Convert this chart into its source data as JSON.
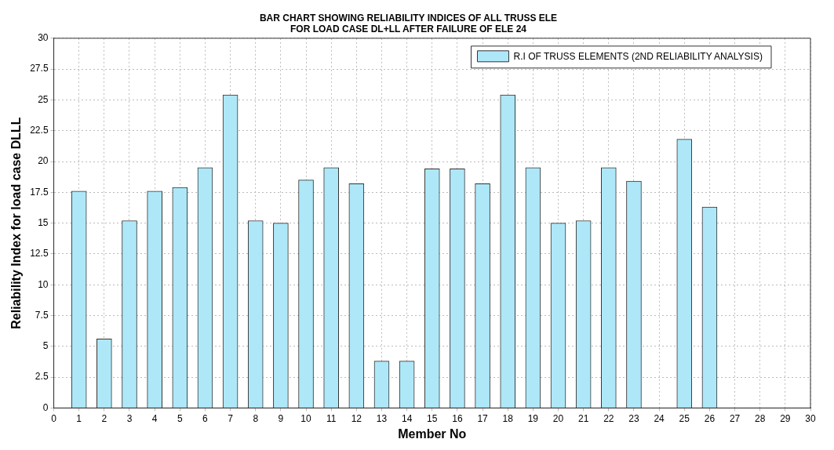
{
  "chart_data": {
    "type": "bar",
    "title": "BAR CHART SHOWING RELIABILITY INDICES OF ALL TRUSS ELE",
    "subtitle": "FOR LOAD CASE DL+LL AFTER FAILURE OF ELE 24",
    "xlabel": "Member No",
    "ylabel": "Reliability Index for load case DLLL",
    "x": [
      1,
      2,
      3,
      4,
      5,
      6,
      7,
      8,
      9,
      10,
      11,
      12,
      13,
      14,
      15,
      16,
      17,
      18,
      19,
      20,
      21,
      22,
      23,
      25,
      26
    ],
    "series": [
      {
        "name": "R.I OF TRUSS ELEMENTS (2ND RELIABILITY ANALYSIS)",
        "color": "#aee8f8",
        "values": [
          17.6,
          5.6,
          15.2,
          17.6,
          17.9,
          19.5,
          25.4,
          15.2,
          15.0,
          18.5,
          19.5,
          18.2,
          3.8,
          3.8,
          19.4,
          19.4,
          18.2,
          25.4,
          19.5,
          15.0,
          15.2,
          19.5,
          18.4,
          21.8,
          16.3
        ]
      }
    ],
    "xlim": [
      0,
      30
    ],
    "xticks": [
      0,
      1,
      2,
      3,
      4,
      5,
      6,
      7,
      8,
      9,
      10,
      11,
      12,
      13,
      14,
      15,
      16,
      17,
      18,
      19,
      20,
      21,
      22,
      23,
      24,
      25,
      26,
      27,
      28,
      29,
      30
    ],
    "ylim": [
      0,
      30
    ],
    "yticks": [
      0,
      2.5,
      5,
      7.5,
      10,
      12.5,
      15,
      17.5,
      20,
      22.5,
      25,
      27.5,
      30
    ],
    "grid": true,
    "legend": "top right"
  }
}
